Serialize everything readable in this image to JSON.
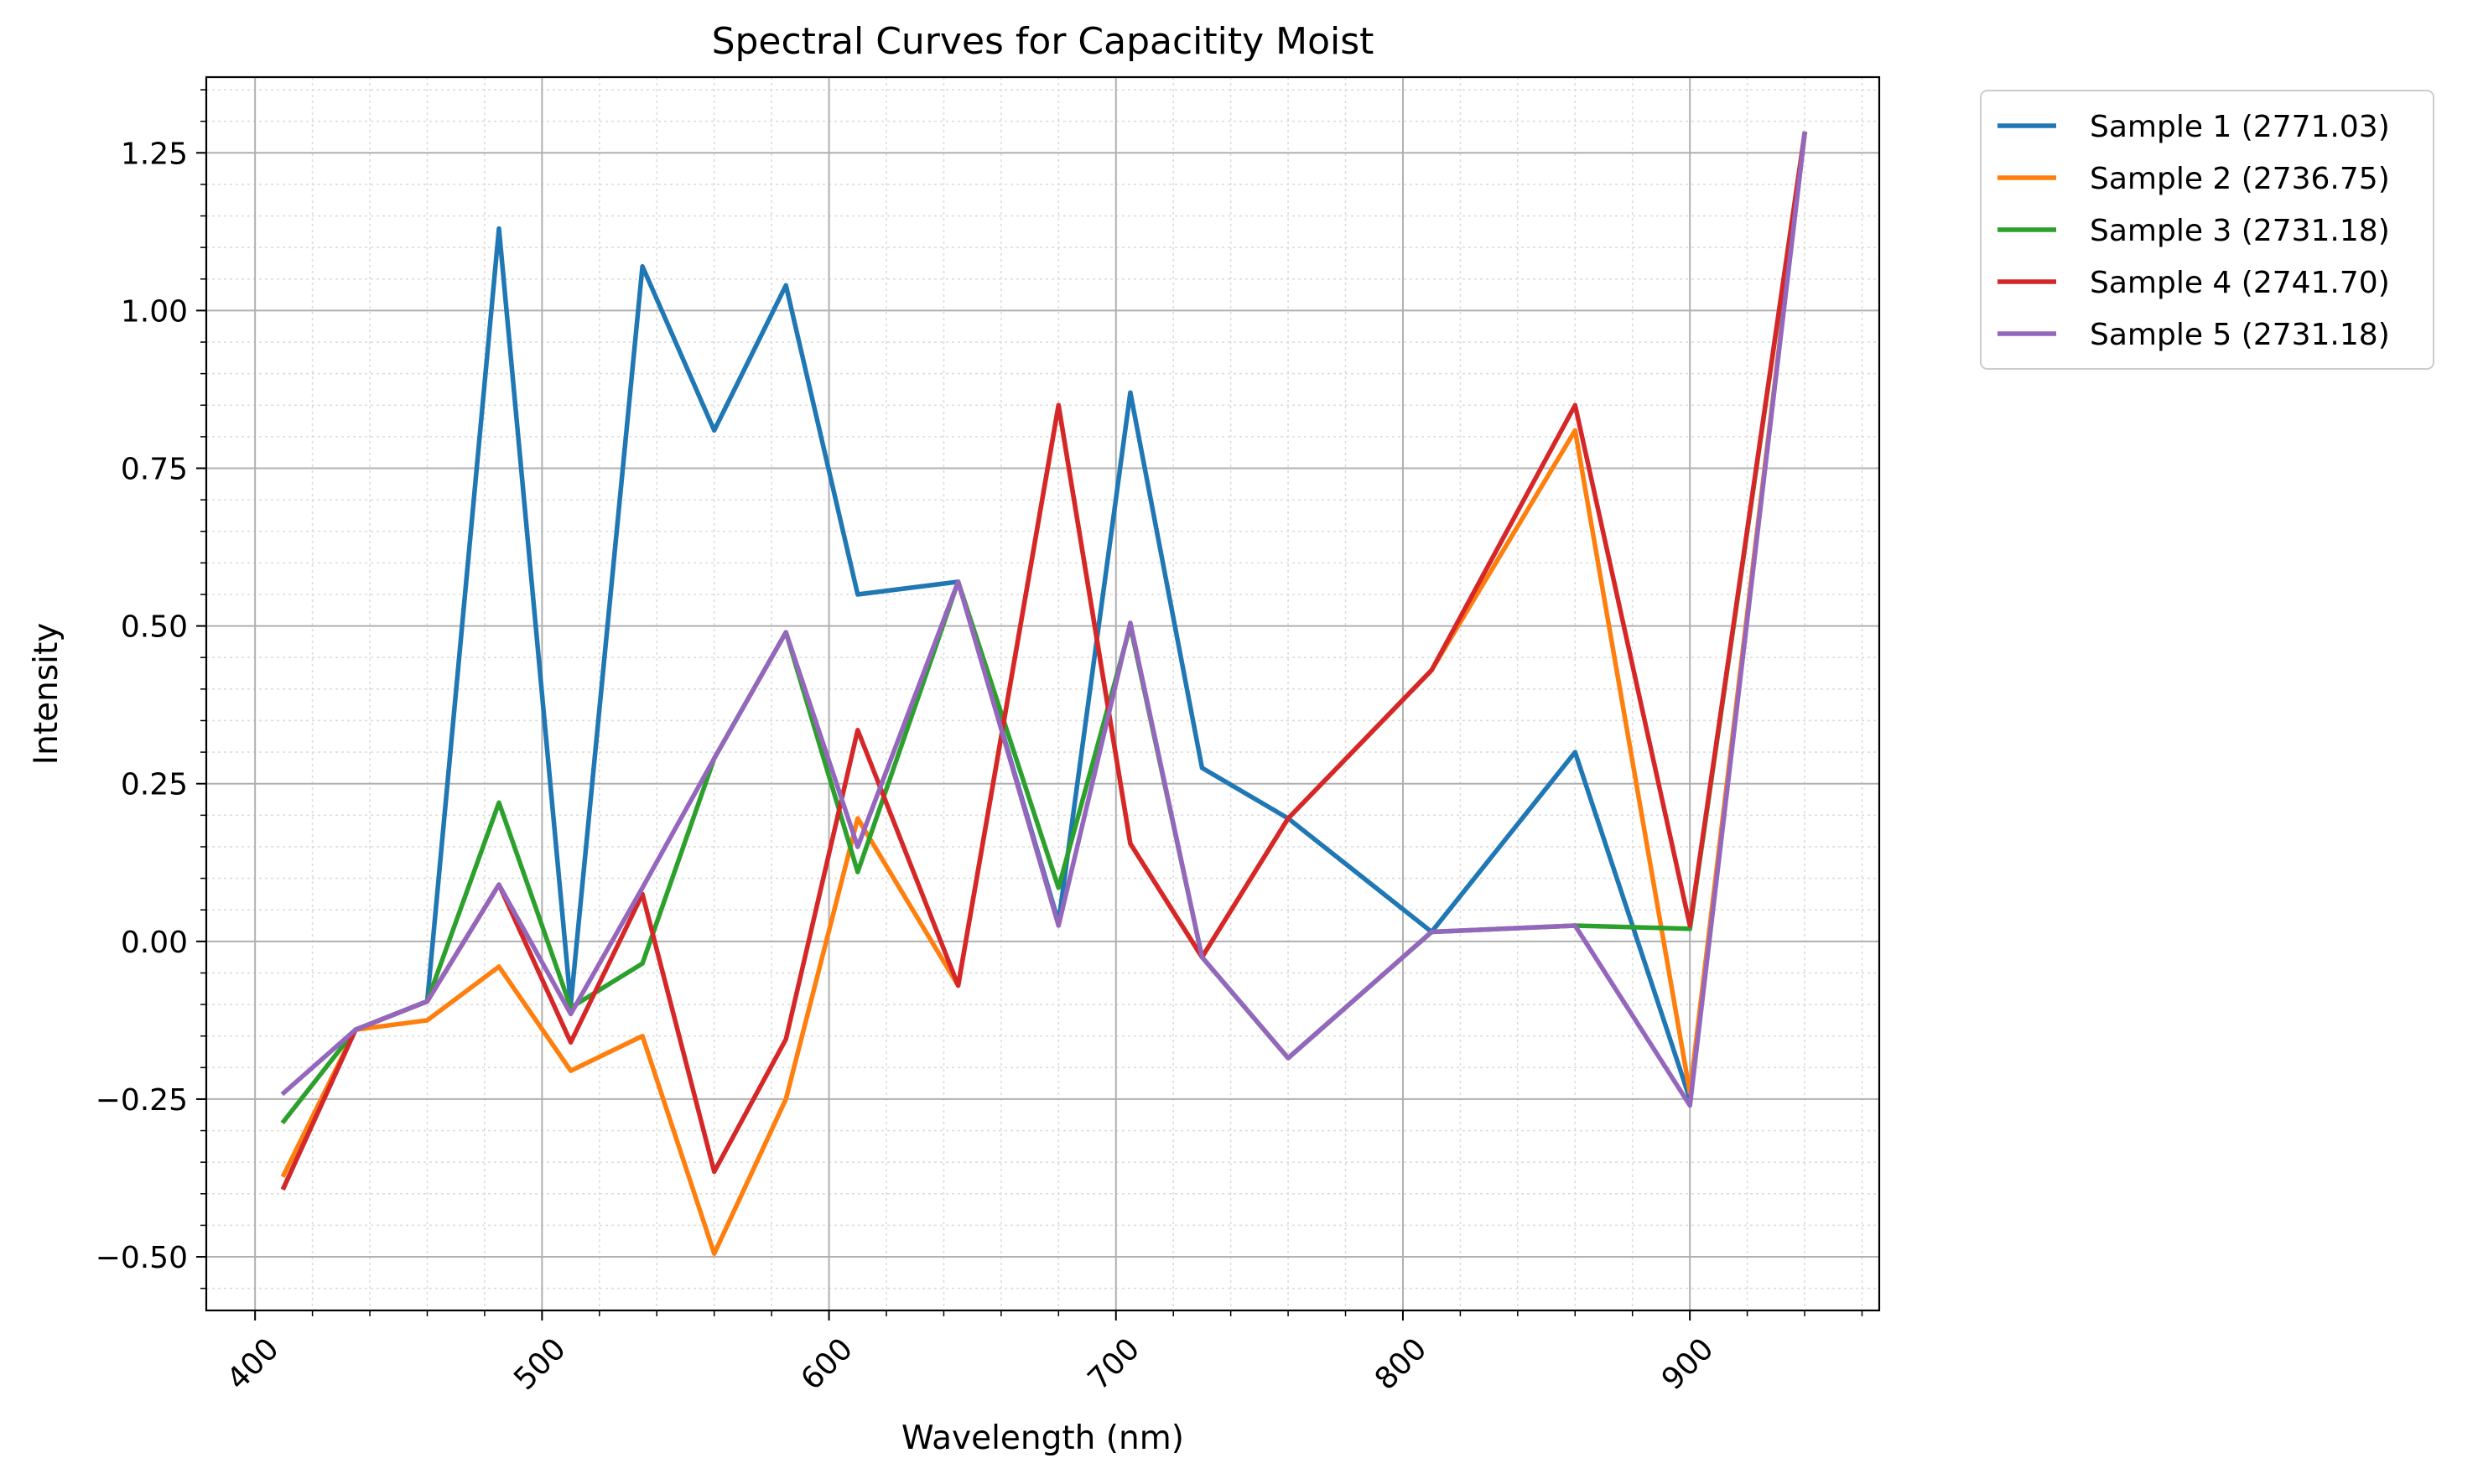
{
  "chart_data": {
    "type": "line",
    "title": "Spectral Curves for Capacitity Moist",
    "xlabel": "Wavelength (nm)",
    "ylabel": "Intensity",
    "xlim": [
      383,
      966
    ],
    "ylim": [
      -0.585,
      1.37
    ],
    "x_ticks": [
      400,
      500,
      600,
      700,
      800,
      900
    ],
    "x_tick_labels": [
      "400",
      "500",
      "600",
      "700",
      "800",
      "900"
    ],
    "y_ticks": [
      -0.5,
      -0.25,
      0.0,
      0.25,
      0.5,
      0.75,
      1.0,
      1.25
    ],
    "y_tick_labels": [
      "−0.50",
      "−0.25",
      "0.00",
      "0.25",
      "0.50",
      "0.75",
      "1.00",
      "1.25"
    ],
    "grid": true,
    "minor_grid": true,
    "legend_position": "outside-top-right",
    "x": [
      410,
      435,
      460,
      485,
      510,
      535,
      560,
      585,
      610,
      645,
      680,
      705,
      730,
      760,
      810,
      860,
      900,
      940
    ],
    "series": [
      {
        "name": "Sample 1 (2771.03)",
        "color": "#1f77b4",
        "values": [
          -0.39,
          -0.14,
          -0.095,
          1.13,
          -0.1,
          1.07,
          0.81,
          1.04,
          0.55,
          0.57,
          0.03,
          0.87,
          0.275,
          0.195,
          0.015,
          0.3,
          -0.25,
          1.28
        ]
      },
      {
        "name": "Sample 2 (2736.75)",
        "color": "#ff7f0e",
        "values": [
          -0.37,
          -0.14,
          -0.125,
          -0.04,
          -0.205,
          -0.15,
          -0.495,
          -0.25,
          0.195,
          -0.07,
          0.85,
          0.155,
          -0.025,
          0.195,
          0.43,
          0.81,
          -0.24,
          1.28
        ]
      },
      {
        "name": "Sample 3 (2731.18)",
        "color": "#2ca02c",
        "values": [
          -0.285,
          -0.14,
          -0.095,
          0.22,
          -0.105,
          -0.035,
          0.29,
          0.49,
          0.11,
          0.57,
          0.085,
          0.5,
          -0.025,
          -0.185,
          0.015,
          0.025,
          0.02,
          1.28
        ]
      },
      {
        "name": "Sample 4 (2741.70)",
        "color": "#d62728",
        "values": [
          -0.39,
          -0.14,
          -0.095,
          0.09,
          -0.16,
          0.075,
          -0.365,
          -0.155,
          0.335,
          -0.07,
          0.85,
          0.155,
          -0.025,
          0.195,
          0.43,
          0.85,
          0.025,
          1.28
        ]
      },
      {
        "name": "Sample 5 (2731.18)",
        "color": "#9467bd",
        "values": [
          -0.24,
          -0.14,
          -0.095,
          0.09,
          -0.115,
          0.085,
          0.29,
          0.49,
          0.15,
          0.57,
          0.025,
          0.505,
          -0.025,
          -0.185,
          0.015,
          0.025,
          -0.26,
          1.28
        ]
      }
    ]
  }
}
